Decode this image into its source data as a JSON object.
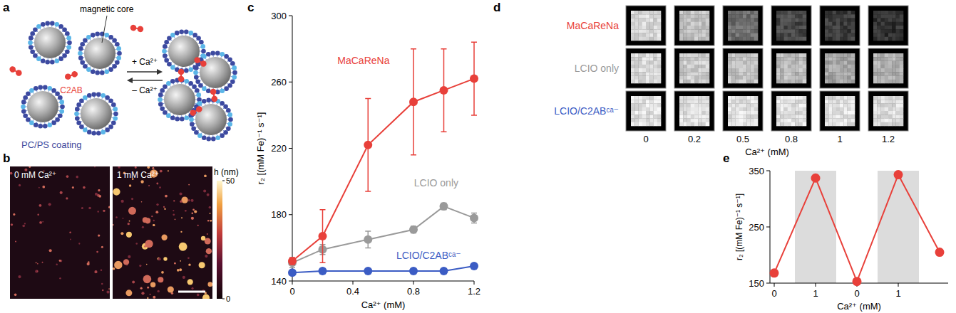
{
  "panel_letters": [
    "a",
    "b",
    "c",
    "d",
    "e"
  ],
  "panels": {
    "a": {
      "labels": {
        "core": "magnetic core",
        "protein": "C2AB",
        "coating": "PC/PS coating",
        "forward": "+ Ca²⁺",
        "reverse": "– Ca²⁺"
      }
    },
    "b": {
      "images": [
        "0 mM Ca²⁺",
        "1 mM Ca²⁺"
      ],
      "colorbar": {
        "label": "h (nm)",
        "range": [
          0,
          50
        ],
        "ticks": [
          0,
          50
        ]
      }
    },
    "d": {
      "row_labels": [
        {
          "text": "MaCaReNa",
          "color": "#e8403a"
        },
        {
          "text": "LCIO only",
          "color": "#9a9a9a"
        },
        {
          "text": "LCIO/C2ABᶜᵃ⁻",
          "color": "#3b5cc4"
        }
      ],
      "column_labels": [
        "0",
        "0.2",
        "0.5",
        "0.8",
        "1",
        "1.2"
      ],
      "x_label": "Ca²⁺ (mM)"
    }
  },
  "chart_data": [
    {
      "type": "line",
      "x_label": "Ca²⁺ (mM)",
      "y_label": "r₂ [(mM Fe)⁻¹ s⁻¹]",
      "x": [
        0,
        0.2,
        0.5,
        0.8,
        1,
        1.2
      ],
      "xlim": [
        0,
        1.2
      ],
      "xticks": [
        0,
        0.4,
        0.8,
        1.2
      ],
      "ylim": [
        140,
        300
      ],
      "yticks": [
        140,
        180,
        220,
        260,
        300
      ],
      "marker": "circle",
      "series": [
        {
          "name": "MaCaReNa",
          "color": "#e8403a",
          "values": [
            152,
            167,
            222,
            248,
            255,
            262
          ],
          "errors": [
            2,
            16,
            28,
            32,
            25,
            22
          ]
        },
        {
          "name": "LCIO only",
          "color": "#9a9a9a",
          "values": [
            151,
            159,
            165,
            171,
            185,
            178
          ],
          "errors": [
            3,
            3,
            5,
            2,
            2,
            3
          ]
        },
        {
          "name": "LCIO/C2ABᶜᵃ⁻",
          "color": "#3b5cc4",
          "values": [
            145,
            146,
            146,
            146,
            146,
            149
          ],
          "errors": [
            1,
            1,
            1,
            1,
            1,
            1
          ]
        }
      ]
    },
    {
      "type": "line",
      "x_label": "Ca²⁺ (mM)",
      "y_label": "r₂ [(mM Fe)⁻¹ s⁻¹]",
      "categories": [
        "0",
        "1",
        "0",
        "1",
        null
      ],
      "values": [
        168,
        337,
        153,
        343,
        205
      ],
      "color": "#e8403a",
      "marker": "circle",
      "ylim": [
        150,
        350
      ],
      "yticks": [
        150,
        250,
        350
      ]
    }
  ]
}
